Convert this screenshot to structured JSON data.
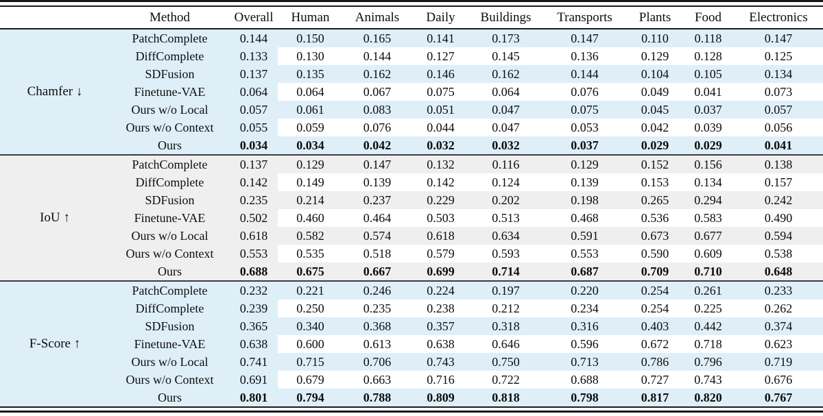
{
  "table": {
    "columns": [
      "Method",
      "Overall",
      "Human",
      "Animals",
      "Daily",
      "Buildings",
      "Transports",
      "Plants",
      "Food",
      "Electronics"
    ],
    "colors": {
      "chamfer_block_tint": "#deeff8",
      "iou_block_tint": "#efefef",
      "fscore_block_tint": "#deeff8",
      "alt_band": "#ffffff",
      "rule": "#151515"
    },
    "blocks": [
      {
        "metric_label": "Chamfer ↓",
        "tint": "#deeff8",
        "rows": [
          {
            "method": "PatchComplete",
            "bold": false,
            "values": [
              "0.144",
              "0.150",
              "0.165",
              "0.141",
              "0.173",
              "0.147",
              "0.110",
              "0.118",
              "0.147"
            ]
          },
          {
            "method": "DiffComplete",
            "bold": false,
            "values": [
              "0.133",
              "0.130",
              "0.144",
              "0.127",
              "0.145",
              "0.136",
              "0.129",
              "0.128",
              "0.125"
            ]
          },
          {
            "method": "SDFusion",
            "bold": false,
            "values": [
              "0.137",
              "0.135",
              "0.162",
              "0.146",
              "0.162",
              "0.144",
              "0.104",
              "0.105",
              "0.134"
            ]
          },
          {
            "method": "Finetune-VAE",
            "bold": false,
            "values": [
              "0.064",
              "0.064",
              "0.067",
              "0.075",
              "0.064",
              "0.076",
              "0.049",
              "0.041",
              "0.073"
            ]
          },
          {
            "method": "Ours w/o Local",
            "bold": false,
            "values": [
              "0.057",
              "0.061",
              "0.083",
              "0.051",
              "0.047",
              "0.075",
              "0.045",
              "0.037",
              "0.057"
            ]
          },
          {
            "method": "Ours w/o Context",
            "bold": false,
            "values": [
              "0.055",
              "0.059",
              "0.076",
              "0.044",
              "0.047",
              "0.053",
              "0.042",
              "0.039",
              "0.056"
            ]
          },
          {
            "method": "Ours",
            "bold": true,
            "values": [
              "0.034",
              "0.034",
              "0.042",
              "0.032",
              "0.032",
              "0.037",
              "0.029",
              "0.029",
              "0.041"
            ]
          }
        ]
      },
      {
        "metric_label": "IoU ↑",
        "tint": "#efefef",
        "rows": [
          {
            "method": "PatchComplete",
            "bold": false,
            "values": [
              "0.137",
              "0.129",
              "0.147",
              "0.132",
              "0.116",
              "0.129",
              "0.152",
              "0.156",
              "0.138"
            ]
          },
          {
            "method": "DiffComplete",
            "bold": false,
            "values": [
              "0.142",
              "0.149",
              "0.139",
              "0.142",
              "0.124",
              "0.139",
              "0.153",
              "0.134",
              "0.157"
            ]
          },
          {
            "method": "SDFusion",
            "bold": false,
            "values": [
              "0.235",
              "0.214",
              "0.237",
              "0.229",
              "0.202",
              "0.198",
              "0.265",
              "0.294",
              "0.242"
            ]
          },
          {
            "method": "Finetune-VAE",
            "bold": false,
            "values": [
              "0.502",
              "0.460",
              "0.464",
              "0.503",
              "0.513",
              "0.468",
              "0.536",
              "0.583",
              "0.490"
            ]
          },
          {
            "method": "Ours w/o Local",
            "bold": false,
            "values": [
              "0.618",
              "0.582",
              "0.574",
              "0.618",
              "0.634",
              "0.591",
              "0.673",
              "0.677",
              "0.594"
            ]
          },
          {
            "method": "Ours w/o Context",
            "bold": false,
            "values": [
              "0.553",
              "0.535",
              "0.518",
              "0.579",
              "0.593",
              "0.553",
              "0.590",
              "0.609",
              "0.538"
            ]
          },
          {
            "method": "Ours",
            "bold": true,
            "values": [
              "0.688",
              "0.675",
              "0.667",
              "0.699",
              "0.714",
              "0.687",
              "0.709",
              "0.710",
              "0.648"
            ]
          }
        ]
      },
      {
        "metric_label": "F-Score ↑",
        "tint": "#deeff8",
        "rows": [
          {
            "method": "PatchComplete",
            "bold": false,
            "values": [
              "0.232",
              "0.221",
              "0.246",
              "0.224",
              "0.197",
              "0.220",
              "0.254",
              "0.261",
              "0.233"
            ]
          },
          {
            "method": "DiffComplete",
            "bold": false,
            "values": [
              "0.239",
              "0.250",
              "0.235",
              "0.238",
              "0.212",
              "0.234",
              "0.254",
              "0.225",
              "0.262"
            ]
          },
          {
            "method": "SDFusion",
            "bold": false,
            "values": [
              "0.365",
              "0.340",
              "0.368",
              "0.357",
              "0.318",
              "0.316",
              "0.403",
              "0.442",
              "0.374"
            ]
          },
          {
            "method": "Finetune-VAE",
            "bold": false,
            "values": [
              "0.638",
              "0.600",
              "0.613",
              "0.638",
              "0.646",
              "0.596",
              "0.672",
              "0.718",
              "0.623"
            ]
          },
          {
            "method": "Ours w/o Local",
            "bold": false,
            "values": [
              "0.741",
              "0.715",
              "0.706",
              "0.743",
              "0.750",
              "0.713",
              "0.786",
              "0.796",
              "0.719"
            ]
          },
          {
            "method": "Ours w/o Context",
            "bold": false,
            "values": [
              "0.691",
              "0.679",
              "0.663",
              "0.716",
              "0.722",
              "0.688",
              "0.727",
              "0.743",
              "0.676"
            ]
          },
          {
            "method": "Ours",
            "bold": true,
            "values": [
              "0.801",
              "0.794",
              "0.788",
              "0.809",
              "0.818",
              "0.798",
              "0.817",
              "0.820",
              "0.767"
            ]
          }
        ]
      }
    ]
  }
}
